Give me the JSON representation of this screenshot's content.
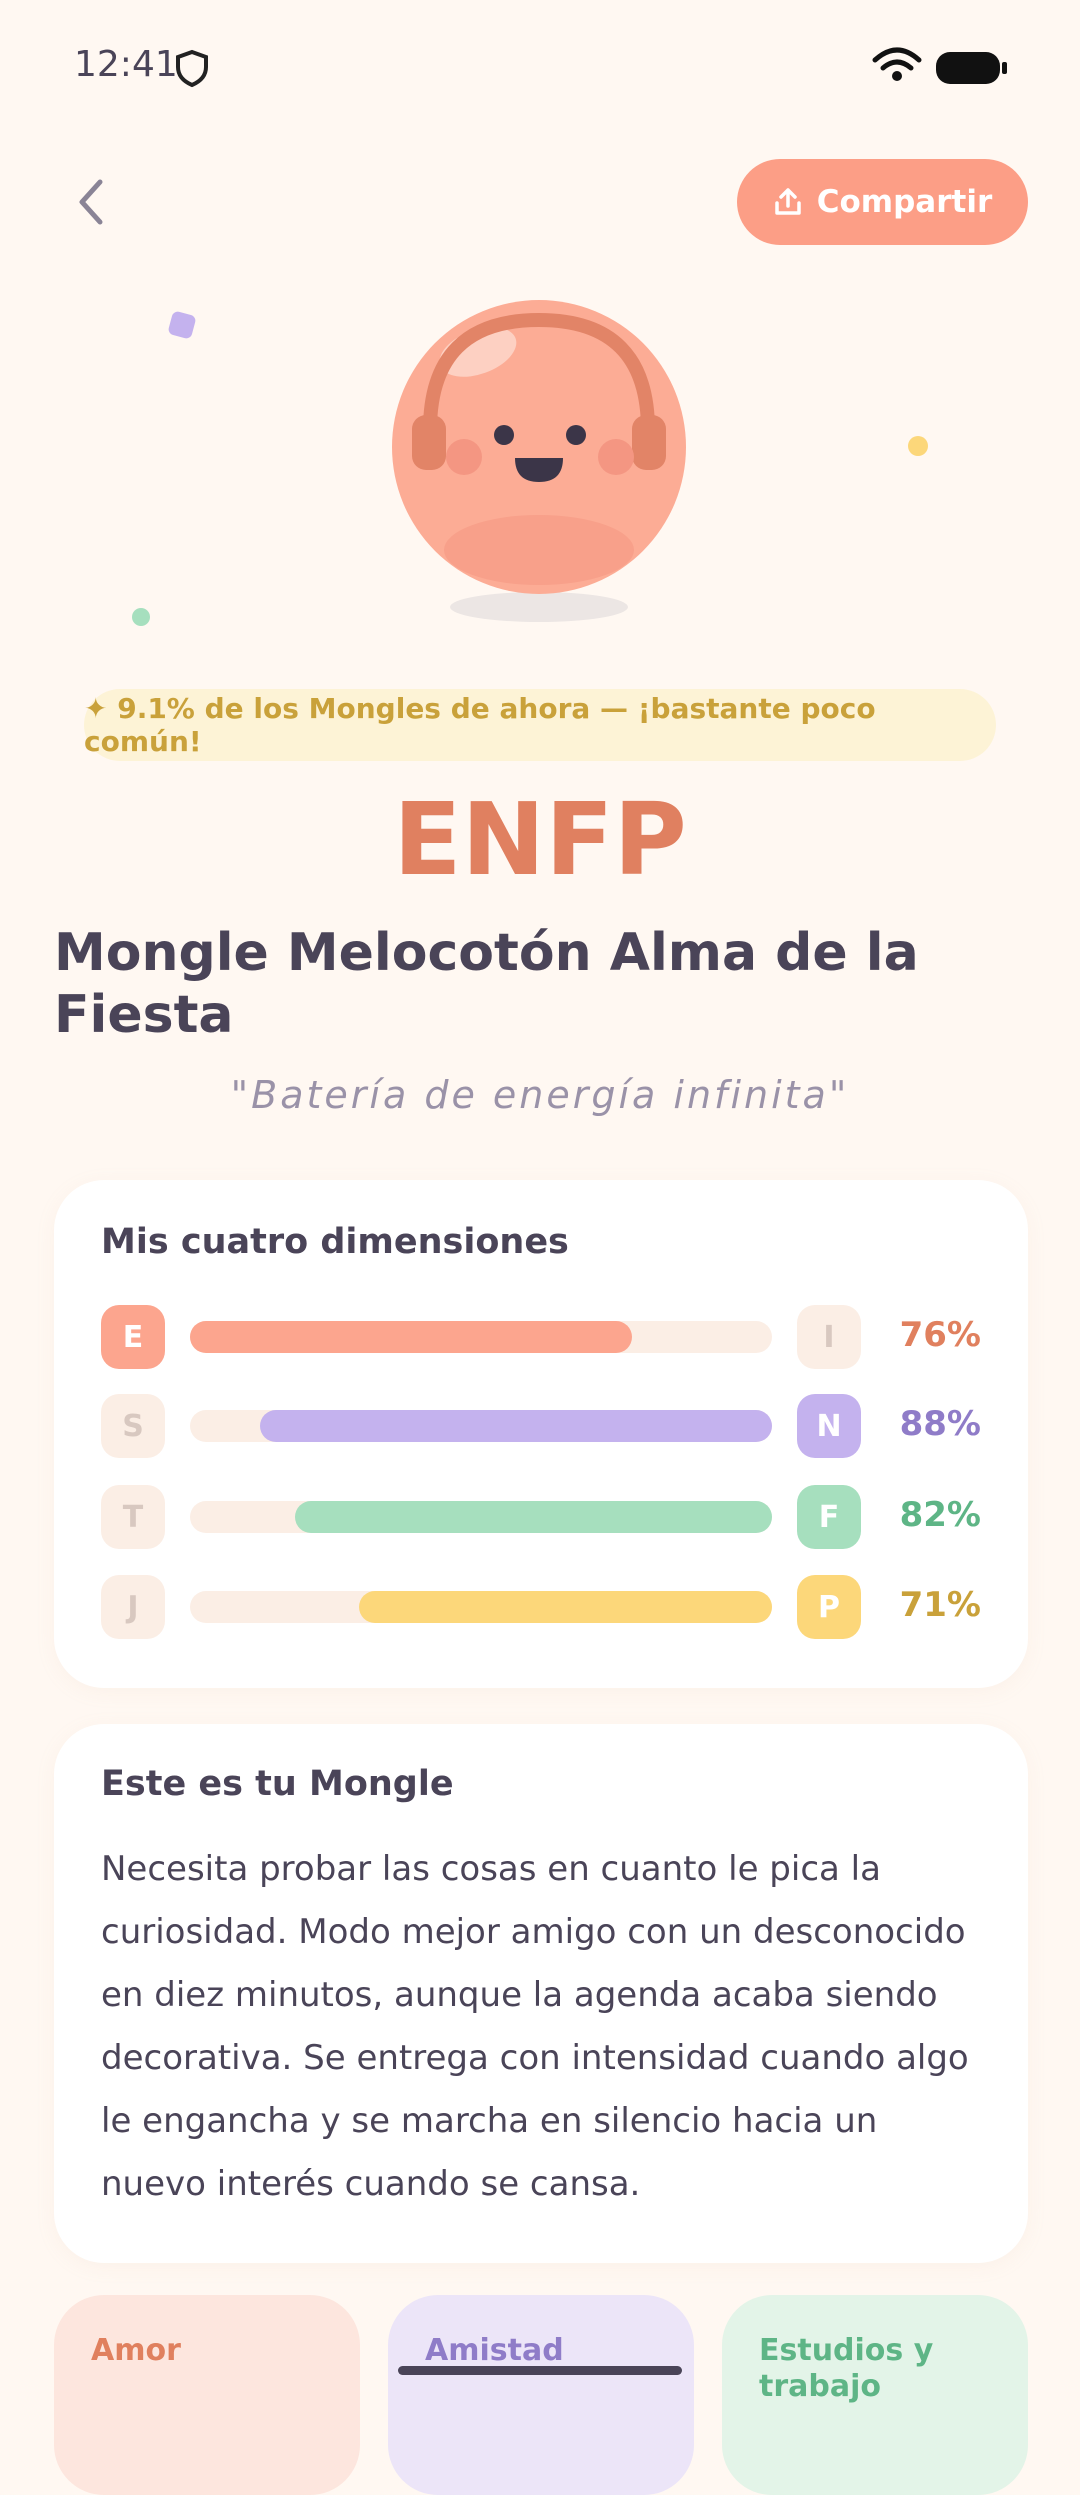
{
  "status_bar": {
    "time": "12:41"
  },
  "header": {
    "share": "Compartir"
  },
  "badge": "✦ 9.1% de los Mongles de ahora — ¡bastante poco común!",
  "type_code": "ENFP",
  "name": "Mongle Melocotón Alma de la Fiesta",
  "quote": "\"Batería de energía infinita\"",
  "dimensions": {
    "title": "Mis cuatro dimensiones",
    "rows": [
      {
        "left": "E",
        "right": "I",
        "percent": 76,
        "percent_label": "76%",
        "dominant": "left",
        "color": "#fca58e",
        "text_color": "#e0805e"
      },
      {
        "left": "S",
        "right": "N",
        "percent": 88,
        "percent_label": "88%",
        "dominant": "right",
        "color": "#c4b2ee",
        "text_color": "#8f7cc8"
      },
      {
        "left": "T",
        "right": "F",
        "percent": 82,
        "percent_label": "82%",
        "dominant": "right",
        "color": "#a6dfbe",
        "text_color": "#5eb586"
      },
      {
        "left": "J",
        "right": "P",
        "percent": 71,
        "percent_label": "71%",
        "dominant": "right",
        "color": "#fcd77a",
        "text_color": "#c9a13a"
      }
    ]
  },
  "description": {
    "title": "Este es tu Mongle",
    "body": "Necesita probar las cosas en cuanto le pica la curiosidad. Modo mejor amigo con un desconocido en diez minutos, aunque la agenda acaba siendo decorativa. Se entrega con intensidad cuando algo le engancha y se marcha en silencio hacia un nuevo interés cuando se cansa."
  },
  "sections": [
    "Amor",
    "Amistad",
    "Estudios y trabajo"
  ]
}
